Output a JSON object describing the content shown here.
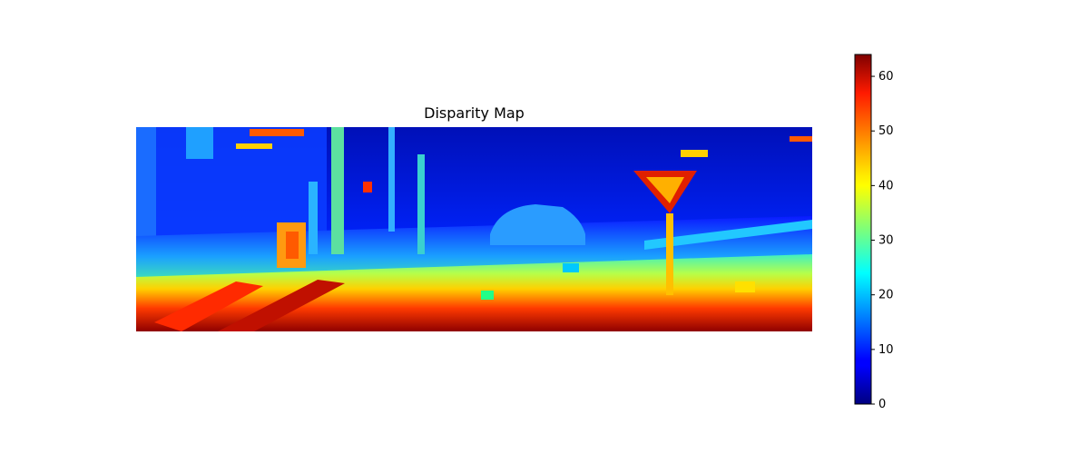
{
  "chart_data": {
    "type": "heatmap",
    "title": "Disparity Map",
    "colormap": "jet",
    "axes_visible": false,
    "grid": false,
    "colorbar": {
      "placement": "right",
      "min": 0,
      "max": 64,
      "ticks": [
        0,
        10,
        20,
        30,
        40,
        50,
        60
      ]
    }
  }
}
